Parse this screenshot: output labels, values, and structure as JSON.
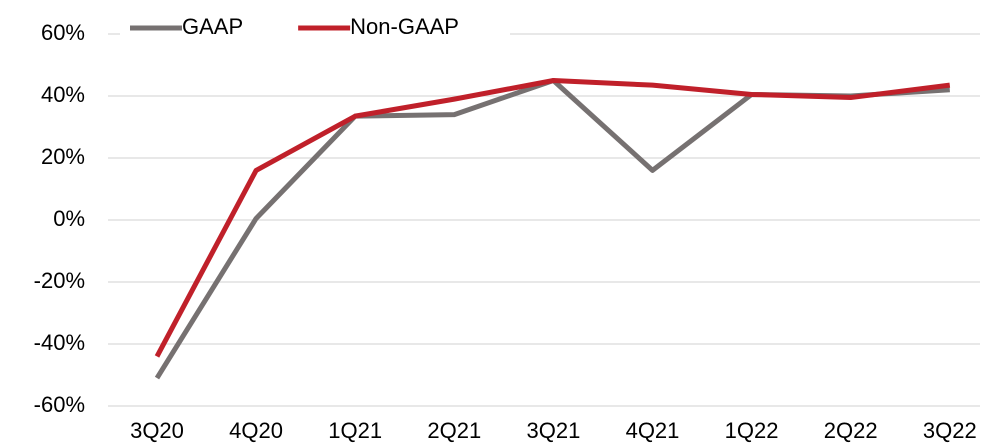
{
  "chart_data": {
    "type": "line",
    "categories": [
      "3Q20",
      "4Q20",
      "1Q21",
      "2Q21",
      "3Q21",
      "4Q21",
      "1Q22",
      "2Q22",
      "3Q22"
    ],
    "series": [
      {
        "name": "GAAP",
        "color": "#767171",
        "values": [
          -51,
          0.5,
          33.5,
          34,
          45,
          16,
          40.5,
          40,
          42
        ]
      },
      {
        "name": "Non-GAAP",
        "color": "#c0202a",
        "values": [
          -44,
          16,
          33.5,
          39,
          45,
          43.5,
          40.5,
          39.5,
          43.5
        ]
      }
    ],
    "ylim": [
      -60,
      60
    ],
    "yticks": [
      {
        "value": -60,
        "label": "-60%"
      },
      {
        "value": -40,
        "label": "-40%"
      },
      {
        "value": -20,
        "label": "-20%"
      },
      {
        "value": 0,
        "label": "0%"
      },
      {
        "value": 20,
        "label": "20%"
      },
      {
        "value": 40,
        "label": "40%"
      },
      {
        "value": 60,
        "label": "60%"
      }
    ],
    "grid": true,
    "legend": "top-left"
  }
}
